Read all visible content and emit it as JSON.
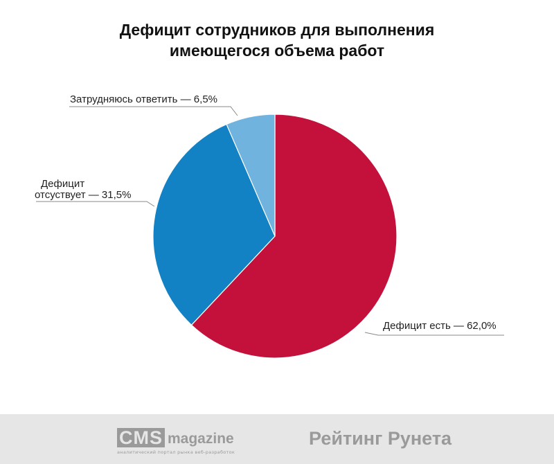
{
  "title_lines": [
    "Дефицит сотрудников для выполнения",
    "имеющегося объема работ"
  ],
  "chart_data": {
    "type": "pie",
    "title": "Дефицит сотрудников для выполнения имеющегося объема работ",
    "slices": [
      {
        "label": "Дефицит есть — 62,0%",
        "value": 62.0,
        "color": "#c4113b"
      },
      {
        "label": "Дефицит отсуствует — 31,5%",
        "value": 31.5,
        "color": "#1282c4"
      },
      {
        "label": "Затрудняюсь ответить — 6,5%",
        "value": 6.5,
        "color": "#6fb3de"
      }
    ]
  },
  "labels": {
    "deficit_yes": "Дефицит есть — 62,0%",
    "deficit_no_line1": "Дефицит",
    "deficit_no_line2": "отсуствует — 31,5%",
    "hard_to_say": "Затрудняюсь ответить — 6,5%"
  },
  "footer": {
    "cms": "CMS",
    "magazine": "magazine",
    "tagline": "аналитический портал рынка веб-разработок",
    "rating": "Рейтинг Рунета"
  },
  "colors": {
    "footer_bg": "#e6e6e6",
    "footer_text": "#9a9a9a"
  }
}
